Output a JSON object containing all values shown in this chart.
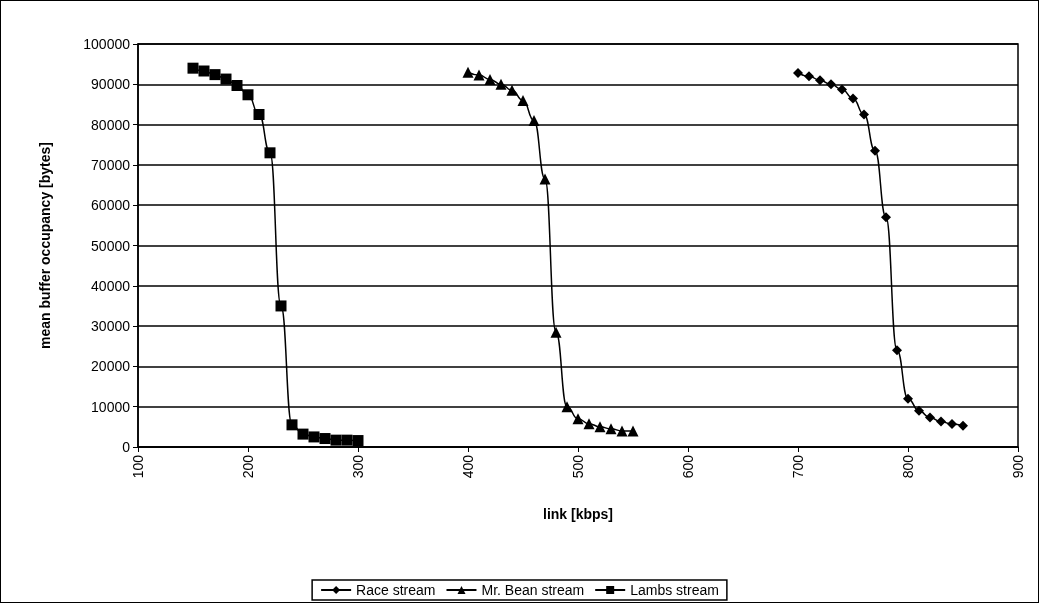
{
  "chart_data": {
    "type": "line",
    "xlabel": "link [kbps]",
    "ylabel": "mean buffer occupancy [bytes]",
    "xlim": [
      100,
      900
    ],
    "xticks": [
      100,
      200,
      300,
      400,
      500,
      600,
      700,
      800,
      900
    ],
    "ylim": [
      0,
      100000
    ],
    "yticks": [
      0,
      10000,
      20000,
      30000,
      40000,
      50000,
      60000,
      70000,
      80000,
      90000,
      100000
    ],
    "grid": "y",
    "legend": "bottom",
    "line_style": "solid",
    "series": [
      {
        "name": "Race stream",
        "color": "#000000",
        "marker": "diamond",
        "x": [
          700,
          710,
          720,
          730,
          740,
          750,
          760,
          770,
          780,
          790,
          800,
          810,
          820,
          830,
          840,
          850
        ],
        "values": [
          92800,
          92000,
          91000,
          90000,
          88700,
          86500,
          82500,
          73500,
          57000,
          24000,
          12000,
          9000,
          7300,
          6300,
          5700,
          5300
        ]
      },
      {
        "name": "Mr. Bean stream",
        "color": "#000000",
        "marker": "triangle",
        "x": [
          400,
          410,
          420,
          430,
          440,
          450,
          460,
          470,
          480,
          490,
          500,
          510,
          520,
          530,
          540,
          550
        ],
        "values": [
          93000,
          92300,
          91200,
          90000,
          88500,
          86000,
          81000,
          66500,
          28500,
          10000,
          7000,
          5800,
          5000,
          4500,
          4000,
          4000
        ]
      },
      {
        "name": "Lambs stream",
        "color": "#000000",
        "marker": "square",
        "x": [
          150,
          160,
          170,
          180,
          190,
          200,
          210,
          220,
          230,
          240,
          250,
          260,
          270,
          280,
          290,
          300
        ],
        "values": [
          94000,
          93300,
          92400,
          91300,
          89700,
          87400,
          82500,
          73000,
          35000,
          5500,
          3200,
          2500,
          2100,
          1700,
          1700,
          1600
        ]
      }
    ]
  }
}
